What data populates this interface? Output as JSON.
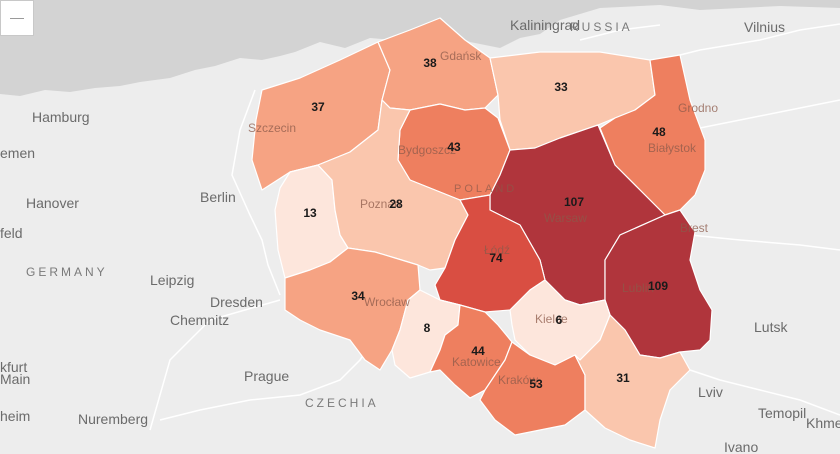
{
  "colors": {
    "water": "#d3d3d3",
    "land": "#ededed",
    "border": "#ffffff",
    "scale": [
      "#fde6dc",
      "#fac6ad",
      "#f6a383",
      "#ee7f5f",
      "#d94e42",
      "#b0353c"
    ]
  },
  "zoom": {
    "icon": "minus-icon"
  },
  "cities": {
    "kaliningrad": "Kaliningrad",
    "russia": "RUSSIA",
    "vilnius": "Vilnius",
    "hamburg": "Hamburg",
    "bremen": "emen",
    "hanover": "Hanover",
    "berlin": "Berlin",
    "bielefeld": "feld",
    "leipzig": "Leipzig",
    "dresden": "Dresden",
    "chemnitz": "Chemnitz",
    "frankfurt": "kfurt",
    "main": "Main",
    "prague": "Prague",
    "nuremberg": "Nuremberg",
    "heim": "heim",
    "lutsk": "Lutsk",
    "lviv": "Lviv",
    "ternopil": "Temopil",
    "khmel": "Khme",
    "ivano": "Ivano"
  },
  "countries": {
    "germany": "GERMANY",
    "czechia": "CZECHIA"
  },
  "overlay": {
    "gdansk": "Gdańsk",
    "szczecin": "Szczecin",
    "bydgoszcz": "Bydgoszcz",
    "poland": "POLAND",
    "poznan": "Poznań",
    "lodz": "Łódź",
    "warsaw": "Warsaw",
    "grodno": "Grodno",
    "bialystok": "Białystok",
    "brest": "Brest",
    "lublin": "Lublin",
    "wroclaw": "Wrocław",
    "katowice": "Katowice",
    "krakow": "Kraków",
    "kielce": "Kielce"
  },
  "regions": [
    {
      "id": "zachodniopomorskie",
      "value": 37,
      "color": "#f6a383"
    },
    {
      "id": "pomorskie",
      "value": 38,
      "color": "#f6a383"
    },
    {
      "id": "warminsko-mazurskie",
      "value": 33,
      "color": "#fac6ad"
    },
    {
      "id": "podlaskie",
      "value": 48,
      "color": "#ee7f5f"
    },
    {
      "id": "kujawsko-pomorskie",
      "value": 43,
      "color": "#ee7f5f"
    },
    {
      "id": "lubuskie",
      "value": 13,
      "color": "#fde6dc"
    },
    {
      "id": "wielkopolskie",
      "value": 28,
      "color": "#fac6ad"
    },
    {
      "id": "mazowieckie",
      "value": 107,
      "color": "#b0353c"
    },
    {
      "id": "lodzkie",
      "value": 74,
      "color": "#d94e42"
    },
    {
      "id": "lubelskie",
      "value": 109,
      "color": "#b0353c"
    },
    {
      "id": "dolnoslaskie",
      "value": 34,
      "color": "#f6a383"
    },
    {
      "id": "opolskie",
      "value": 8,
      "color": "#fde6dc"
    },
    {
      "id": "slaskie",
      "value": 44,
      "color": "#ee7f5f"
    },
    {
      "id": "swietokrzyskie",
      "value": 6,
      "color": "#fde6dc"
    },
    {
      "id": "malopolskie",
      "value": 53,
      "color": "#ee7f5f"
    },
    {
      "id": "podkarpackie",
      "value": 31,
      "color": "#fac6ad"
    }
  ]
}
